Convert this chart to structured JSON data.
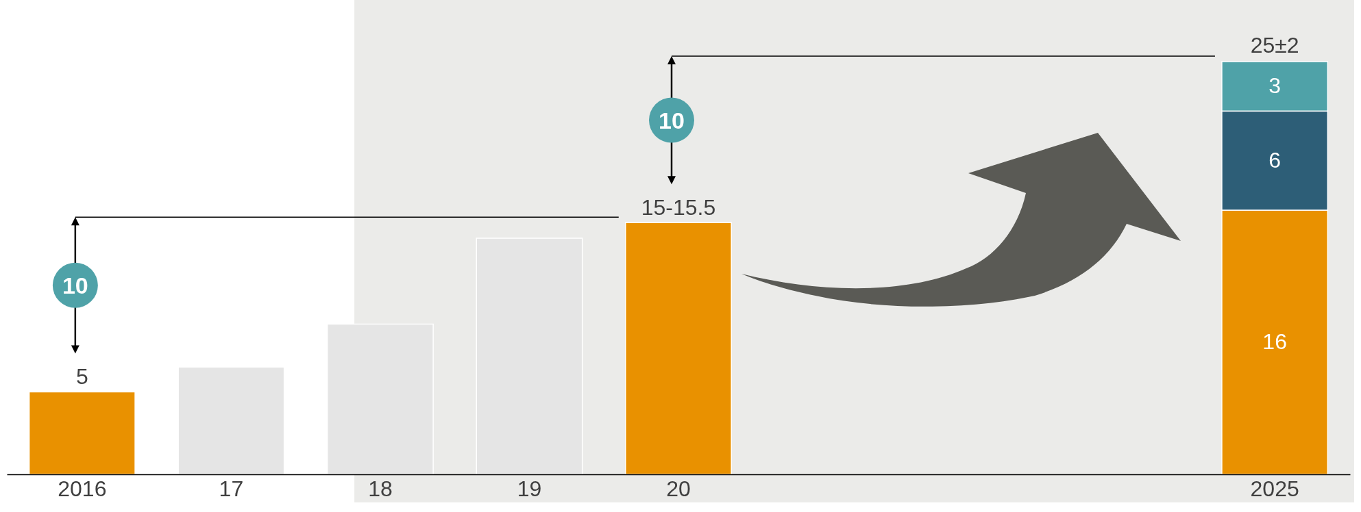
{
  "chart_data": {
    "type": "bar",
    "stacked": true,
    "categories": [
      "2016",
      "17",
      "18",
      "19",
      "20",
      null,
      null,
      null,
      "2025"
    ],
    "series": [
      {
        "values": [
          5,
          6.5,
          9.1,
          14.3,
          15.25,
          null,
          null,
          null,
          16
        ],
        "colors": [
          "#e99100",
          "#e5e5e5",
          "#e5e5e5",
          "#e5e5e5",
          "#e99100",
          null,
          null,
          null,
          "#e99100"
        ],
        "value_labels": [
          "5",
          null,
          null,
          null,
          "15-15.5",
          null,
          null,
          null,
          "16"
        ]
      },
      {
        "color": "#2d5e77",
        "values": [
          null,
          null,
          null,
          null,
          null,
          null,
          null,
          null,
          6
        ],
        "value_labels": [
          null,
          null,
          null,
          null,
          null,
          null,
          null,
          null,
          "6"
        ]
      },
      {
        "color": "#4fa2a8",
        "values": [
          null,
          null,
          null,
          null,
          null,
          null,
          null,
          null,
          3
        ],
        "value_labels": [
          null,
          null,
          null,
          null,
          null,
          null,
          null,
          null,
          "3"
        ]
      }
    ],
    "totals": [
      null,
      null,
      null,
      null,
      null,
      null,
      null,
      null,
      "25±2"
    ],
    "annotations": [
      "10",
      "10"
    ]
  }
}
